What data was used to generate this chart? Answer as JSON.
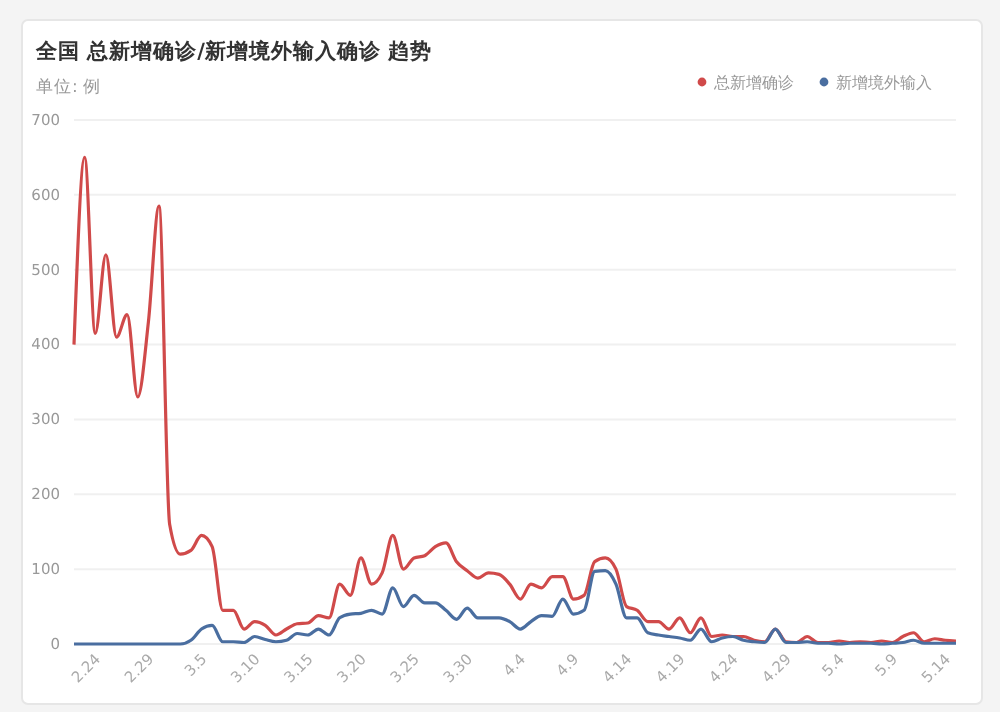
{
  "chart_data": {
    "type": "line",
    "title": "全国 总新增确诊/新增境外输入确诊 趋势",
    "subtitle": "单位: 例",
    "categories": [
      null,
      null,
      "2.24",
      null,
      null,
      null,
      null,
      "2.29",
      null,
      null,
      null,
      null,
      "3.5",
      null,
      null,
      null,
      null,
      "3.10",
      null,
      null,
      null,
      null,
      "3.15",
      null,
      null,
      null,
      null,
      "3.20",
      null,
      null,
      null,
      null,
      "3.25",
      null,
      null,
      null,
      null,
      "3.30",
      null,
      null,
      null,
      null,
      "4.4",
      null,
      null,
      null,
      null,
      "4.9",
      null,
      null,
      null,
      null,
      "4.14",
      null,
      null,
      null,
      null,
      "4.19",
      null,
      null,
      null,
      null,
      "4.24",
      null,
      null,
      null,
      null,
      "4.29",
      null,
      null,
      null,
      null,
      "5.4",
      null,
      null,
      null,
      null,
      "5.9",
      null,
      null,
      null,
      null,
      "5.14",
      null
    ],
    "series": [
      {
        "name": "总新增确诊",
        "color": "#d04a4a",
        "values": [
          400,
          650,
          415,
          520,
          410,
          440,
          330,
          430,
          585,
          160,
          120,
          125,
          145,
          130,
          45,
          45,
          20,
          30,
          25,
          12,
          20,
          27,
          28,
          38,
          35,
          80,
          65,
          115,
          80,
          95,
          145,
          100,
          115,
          118,
          130,
          135,
          110,
          98,
          88,
          95,
          93,
          80,
          60,
          80,
          75,
          90,
          90,
          60,
          65,
          110,
          115,
          100,
          50,
          45,
          30,
          30,
          20,
          35,
          15,
          35,
          10,
          12,
          10,
          10,
          5,
          3,
          20,
          3,
          2,
          10,
          2,
          2,
          4,
          2,
          3,
          2,
          4,
          2,
          10,
          15,
          3,
          7,
          5,
          4
        ]
      },
      {
        "name": "新增境外输入",
        "color": "#4a6ea0",
        "values": [
          0,
          0,
          0,
          0,
          0,
          0,
          0,
          0,
          0,
          0,
          0,
          5,
          20,
          25,
          3,
          3,
          2,
          10,
          6,
          3,
          5,
          14,
          12,
          20,
          12,
          35,
          40,
          41,
          45,
          40,
          75,
          50,
          65,
          55,
          55,
          45,
          33,
          48,
          35,
          35,
          35,
          30,
          20,
          30,
          38,
          37,
          60,
          40,
          45,
          97,
          98,
          80,
          35,
          35,
          15,
          12,
          10,
          8,
          5,
          20,
          3,
          8,
          10,
          5,
          3,
          2,
          20,
          2,
          2,
          3,
          1,
          1,
          0,
          1,
          1,
          1,
          0,
          1,
          2,
          5,
          1,
          1,
          1,
          1
        ]
      }
    ],
    "ylim": [
      0,
      700
    ],
    "yticks": [
      0,
      100,
      200,
      300,
      400,
      500,
      600,
      700
    ],
    "grid": "y",
    "legend": "top right",
    "marker": "none",
    "line_style": "solid"
  }
}
